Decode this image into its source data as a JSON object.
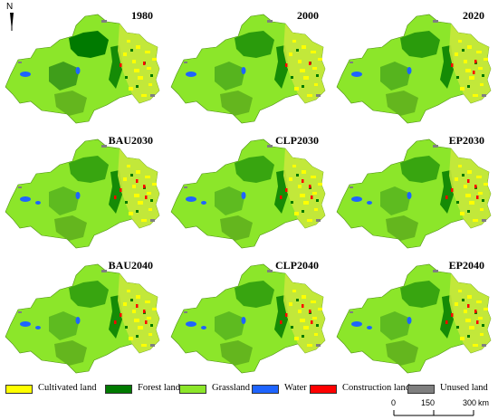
{
  "north_arrow": {
    "label": "N"
  },
  "panels": [
    {
      "title": "1980"
    },
    {
      "title": "2000"
    },
    {
      "title": "2020"
    },
    {
      "title": "BAU2030"
    },
    {
      "title": "CLP2030"
    },
    {
      "title": "EP2030"
    },
    {
      "title": "BAU2040"
    },
    {
      "title": "CLP2040"
    },
    {
      "title": "EP2040"
    }
  ],
  "legend": [
    {
      "label": "Cultivated land",
      "color": "#ffff00"
    },
    {
      "label": "Forest land",
      "color": "#007a00"
    },
    {
      "label": "Grassland",
      "color": "#8ce62a"
    },
    {
      "label": "Water",
      "color": "#1e64ff"
    },
    {
      "label": "Construction land",
      "color": "#ff0000"
    },
    {
      "label": "Unused land",
      "color": "#7f7f7f"
    }
  ],
  "scale_bar": {
    "ticks": [
      "0",
      "150",
      "300"
    ],
    "unit": "km"
  }
}
